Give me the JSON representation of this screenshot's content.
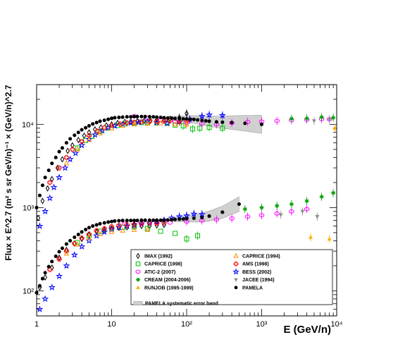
{
  "chart_data": {
    "type": "scatter",
    "title": "",
    "xlabel": "E (GeV/n)",
    "ylabel": "Flux × E^2.7 (m² s sr GeV/n)⁻¹ × (GeV/n)^2.7",
    "xscale": "log",
    "yscale": "log",
    "xlim": [
      1,
      10000
    ],
    "ylim": [
      50,
      30000
    ],
    "x_ticks": [
      {
        "value": 1,
        "label": "1"
      },
      {
        "value": 10,
        "label": "10"
      },
      {
        "value": 100,
        "label": "10²"
      },
      {
        "value": 1000,
        "label": "10³"
      },
      {
        "value": 10000,
        "label": "10⁴"
      }
    ],
    "y_ticks": [
      {
        "value": 100,
        "label": "10²"
      },
      {
        "value": 1000,
        "label": "10³"
      },
      {
        "value": 10000,
        "label": "10⁴"
      }
    ],
    "legend_position": "bottom-right",
    "legend": [
      {
        "label": "IMAX (1992)",
        "marker": "open-diamond",
        "color": "#000000"
      },
      {
        "label": "CAPRICE (1994)",
        "marker": "open-triangle",
        "color": "#ff8c00"
      },
      {
        "label": "CAPRICE (1998)",
        "marker": "open-square",
        "color": "#00c000"
      },
      {
        "label": "AMS (1998)",
        "marker": "open-cross",
        "color": "#ff0000"
      },
      {
        "label": "ATIC-2 (2007)",
        "marker": "open-circle",
        "color": "#ff00ff"
      },
      {
        "label": "BESS (2002)",
        "marker": "open-star",
        "color": "#0000ff"
      },
      {
        "label": "CREAM (2004-2006)",
        "marker": "asterisk",
        "color": "#00a000"
      },
      {
        "label": "JACEE (1994)",
        "marker": "filled-down-triangle",
        "color": "#909090"
      },
      {
        "label": "RUNJOB (1995-1999)",
        "marker": "filled-triangle",
        "color": "#ffb000"
      },
      {
        "label": "PAMELA",
        "marker": "filled-circle",
        "color": "#000000"
      },
      {
        "label": "PAMELA systematic error band",
        "marker": "band",
        "color": "#c8c8c8"
      }
    ],
    "series": [
      {
        "name": "PAMELA",
        "marker": "filled-circle",
        "color": "#000000",
        "group": "proton",
        "x": [
          1.0,
          1.1,
          1.2,
          1.3,
          1.45,
          1.6,
          1.8,
          2.0,
          2.2,
          2.5,
          2.8,
          3.2,
          3.6,
          4.0,
          4.5,
          5.0,
          5.6,
          6.3,
          7.0,
          8.0,
          9.0,
          10,
          11,
          12.5,
          14,
          16,
          18,
          20,
          22,
          25,
          28,
          32,
          36,
          40,
          45,
          50,
          56,
          63,
          70,
          80,
          90,
          100,
          112,
          125,
          140,
          160,
          180,
          200,
          250,
          300,
          400,
          600,
          1000
        ],
        "y": [
          1000,
          1400,
          1850,
          2300,
          2800,
          3400,
          4000,
          4700,
          5200,
          6000,
          6700,
          7400,
          8000,
          8600,
          9100,
          9600,
          10100,
          10500,
          10900,
          11200,
          11500,
          11800,
          12000,
          12100,
          12200,
          12300,
          12300,
          12400,
          12400,
          12400,
          12400,
          12350,
          12300,
          12200,
          12100,
          12000,
          11900,
          11850,
          11750,
          11700,
          11650,
          11600,
          11500,
          11450,
          11300,
          11150,
          11000,
          10900,
          10700,
          10600,
          10500,
          10300,
          10000
        ]
      },
      {
        "name": "IMAX (1992)",
        "marker": "open-diamond",
        "color": "#000000",
        "group": "proton",
        "x": [
          1.05,
          1.2,
          1.4,
          1.6,
          1.9,
          2.2,
          2.6,
          3.0,
          3.6,
          4.3,
          5.0,
          6.0,
          7.2,
          8.5,
          10,
          12,
          15,
          18,
          22,
          27,
          33,
          40,
          50,
          60,
          80,
          100
        ],
        "y": [
          750,
          1200,
          1700,
          2200,
          3000,
          3800,
          4800,
          5600,
          6500,
          7300,
          8000,
          8700,
          9200,
          9700,
          10000,
          10400,
          10700,
          10800,
          10900,
          11000,
          11100,
          11400,
          11500,
          11700,
          12000,
          13500
        ]
      },
      {
        "name": "CAPRICE (1998)",
        "marker": "open-square",
        "color": "#00c000",
        "group": "proton",
        "x": [
          3.5,
          4.5,
          5.5,
          7,
          9,
          12,
          15,
          20,
          25,
          30,
          40,
          55,
          70,
          90,
          120,
          150,
          200,
          300
        ],
        "y": [
          5200,
          6400,
          7200,
          8200,
          9000,
          9700,
          10100,
          10300,
          10500,
          10500,
          10400,
          10300,
          9800,
          9600,
          8800,
          9000,
          9200,
          9000
        ]
      },
      {
        "name": "ATIC-2 (2007)",
        "marker": "open-circle",
        "color": "#ff00ff",
        "group": "proton",
        "x": [
          20,
          30,
          45,
          70,
          100,
          160,
          250,
          400,
          650,
          1000,
          1600,
          2500,
          4000,
          6300,
          8000
        ],
        "y": [
          12500,
          12000,
          11200,
          10800,
          10400,
          10200,
          10000,
          10400,
          10700,
          10800,
          11000,
          11200,
          11400,
          11600,
          11500
        ]
      },
      {
        "name": "CREAM (2004-2006)",
        "marker": "asterisk",
        "color": "#00a000",
        "group": "proton",
        "x": [
          2500,
          4000,
          6300,
          9000
        ],
        "y": [
          11700,
          11800,
          12200,
          12000
        ]
      },
      {
        "name": "BESS (2002)",
        "marker": "open-star",
        "color": "#0000ff",
        "group": "proton",
        "x": [
          1.1,
          1.3,
          1.5,
          1.7,
          2.0,
          2.4,
          2.8,
          3.3,
          4.0,
          5.0,
          6.0,
          7.5,
          9.0,
          11,
          14,
          18,
          23,
          30,
          40,
          55,
          80,
          110,
          160,
          200,
          300
        ],
        "y": [
          600,
          900,
          1300,
          1750,
          2300,
          3000,
          3800,
          4500,
          5600,
          6600,
          7500,
          8400,
          9100,
          9600,
          10000,
          10400,
          10600,
          10800,
          10500,
          10300,
          10800,
          11500,
          12500,
          13000,
          12800
        ]
      },
      {
        "name": "AMS (1998)",
        "marker": "open-cross",
        "color": "#ff0000",
        "group": "proton",
        "x": [
          1.5,
          2.0,
          2.5,
          3.0,
          4.0,
          5.0,
          6.5,
          8,
          10,
          13,
          16,
          20,
          25,
          32,
          40,
          50,
          60,
          80,
          100
        ],
        "y": [
          2000,
          3000,
          4000,
          5000,
          6200,
          7300,
          8300,
          9100,
          9700,
          10100,
          10400,
          10600,
          10700,
          10800,
          10800,
          10900,
          11000,
          10800,
          11000
        ]
      },
      {
        "name": "CAPRICE (1994)",
        "marker": "open-triangle",
        "color": "#ff8c00",
        "group": "proton",
        "x": [
          2.5,
          3.5,
          5,
          7,
          10,
          14,
          20,
          30,
          45,
          70,
          100
        ],
        "y": [
          3400,
          5000,
          6500,
          7800,
          8900,
          9600,
          10000,
          10200,
          10300,
          10000,
          10000
        ]
      },
      {
        "name": "JACEE (1994)",
        "marker": "filled-down-triangle",
        "color": "#909090",
        "group": "proton",
        "x": [
          5000,
          8000
        ],
        "y": [
          11000,
          11400
        ]
      },
      {
        "name": "RUNJOB (1995-1999)",
        "marker": "filled-triangle",
        "color": "#ffb000",
        "group": "proton",
        "x": [
          9500
        ],
        "y": [
          9000
        ]
      },
      {
        "name": "PAMELA",
        "marker": "filled-circle",
        "color": "#000000",
        "group": "helium",
        "x": [
          1.0,
          1.1,
          1.2,
          1.3,
          1.45,
          1.6,
          1.8,
          2.0,
          2.2,
          2.5,
          2.8,
          3.2,
          3.6,
          4.0,
          4.5,
          5.0,
          5.6,
          6.3,
          7.0,
          8.0,
          9.0,
          10,
          11,
          12.5,
          14,
          16,
          18,
          20,
          22,
          25,
          28,
          32,
          36,
          40,
          45,
          50,
          56,
          63,
          70,
          80,
          90,
          100,
          125,
          160,
          200,
          300,
          500
        ],
        "y": [
          95,
          115,
          140,
          165,
          195,
          225,
          260,
          295,
          325,
          365,
          400,
          440,
          475,
          510,
          545,
          575,
          600,
          620,
          640,
          655,
          670,
          680,
          690,
          695,
          700,
          700,
          700,
          700,
          700,
          705,
          705,
          705,
          705,
          705,
          705,
          705,
          710,
          715,
          720,
          725,
          730,
          735,
          745,
          760,
          790,
          880,
          1100
        ]
      },
      {
        "name": "IMAX (1992)",
        "marker": "open-diamond",
        "color": "#000000",
        "group": "helium",
        "x": [
          1.1,
          1.3,
          1.6,
          2.0,
          2.5,
          3.2,
          4.0,
          5.0,
          6.3,
          8,
          10,
          12.5,
          16,
          20,
          25,
          32,
          40,
          50
        ],
        "y": [
          110,
          145,
          190,
          250,
          310,
          370,
          420,
          470,
          510,
          540,
          560,
          570,
          580,
          590,
          600,
          600,
          610,
          620
        ]
      },
      {
        "name": "CAPRICE (1998)",
        "marker": "open-square",
        "color": "#00c000",
        "group": "helium",
        "x": [
          3.5,
          5,
          7,
          10,
          14,
          20,
          30,
          45,
          70,
          100,
          140
        ],
        "y": [
          380,
          460,
          520,
          560,
          580,
          590,
          560,
          520,
          490,
          420,
          460
        ]
      },
      {
        "name": "ATIC-2 (2007)",
        "marker": "open-circle",
        "color": "#ff00ff",
        "group": "helium",
        "x": [
          15,
          25,
          40,
          60,
          100,
          160,
          250,
          400,
          650,
          1000,
          1600,
          2500,
          4000
        ],
        "y": [
          640,
          660,
          650,
          660,
          680,
          700,
          720,
          740,
          780,
          810,
          850,
          900,
          960
        ]
      },
      {
        "name": "CREAM (2004-2006)",
        "marker": "asterisk",
        "color": "#00a000",
        "group": "helium",
        "x": [
          600,
          1000,
          1600,
          2500,
          4000,
          6300,
          9000
        ],
        "y": [
          960,
          1000,
          1050,
          1100,
          1200,
          1350,
          1500
        ]
      },
      {
        "name": "BESS (2002)",
        "marker": "open-star",
        "color": "#0000ff",
        "group": "helium",
        "x": [
          1.1,
          1.3,
          1.6,
          2.0,
          2.5,
          3.2,
          4.0,
          5.0,
          6.3,
          8,
          10,
          12.5,
          16,
          20,
          25,
          32,
          40,
          50,
          63,
          80,
          100,
          125,
          160
        ],
        "y": [
          60,
          80,
          110,
          150,
          200,
          270,
          340,
          400,
          460,
          510,
          550,
          580,
          600,
          620,
          640,
          660,
          680,
          710,
          750,
          780,
          800,
          840,
          830
        ]
      },
      {
        "name": "AMS (1998)",
        "marker": "open-cross",
        "color": "#ff0000",
        "group": "helium",
        "x": [
          1.5,
          2.0,
          2.5,
          3.2,
          4.0,
          5.0,
          6.3,
          8,
          10,
          12.5,
          16,
          20,
          25,
          32,
          40,
          50
        ],
        "y": [
          180,
          240,
          300,
          370,
          430,
          480,
          530,
          560,
          590,
          610,
          620,
          630,
          640,
          650,
          650,
          660
        ]
      },
      {
        "name": "CAPRICE (1994)",
        "marker": "open-triangle",
        "color": "#ff8c00",
        "group": "helium",
        "x": [
          2.5,
          3.5,
          5,
          7,
          10,
          14,
          20,
          30
        ],
        "y": [
          280,
          360,
          430,
          480,
          510,
          530,
          540,
          540
        ]
      },
      {
        "name": "JACEE (1994)",
        "marker": "filled-down-triangle",
        "color": "#909090",
        "group": "helium",
        "x": [
          1800,
          3500,
          5500
        ],
        "y": [
          820,
          900,
          780
        ]
      },
      {
        "name": "RUNJOB (1995-1999)",
        "marker": "filled-triangle",
        "color": "#ffb000",
        "group": "helium",
        "x": [
          4500,
          8000
        ],
        "y": [
          440,
          420
        ]
      }
    ]
  }
}
